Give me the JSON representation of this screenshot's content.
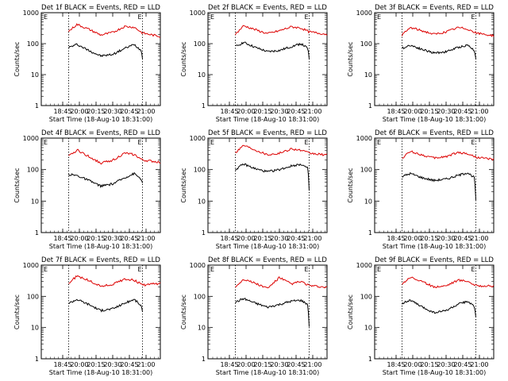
{
  "chart_data": [
    {
      "type": "line",
      "title": "Det 1f BLACK = Events, RED = LLD",
      "xlabel": "Start Time (18-Aug-10 18:31:00)",
      "ylabel": "Counts/sec",
      "yscale": "log",
      "ylim": [
        1,
        1000
      ],
      "yticks": [
        "1",
        "10",
        "100",
        "1000"
      ],
      "xticks": [
        "18:45",
        "20:00",
        "20:15",
        "20:30",
        "20:45",
        "21:00"
      ],
      "annotations": [
        "E",
        "E"
      ],
      "dotted_lines": [
        0.23,
        0.85
      ],
      "series": [
        {
          "color": "#000000",
          "x": [
            0.23,
            0.3,
            0.4,
            0.5,
            0.6,
            0.7,
            0.78,
            0.84,
            0.85
          ],
          "values": [
            75,
            95,
            60,
            40,
            45,
            70,
            95,
            60,
            35
          ]
        },
        {
          "color": "#dd0000",
          "x": [
            0.23,
            0.3,
            0.4,
            0.5,
            0.6,
            0.7,
            0.78,
            0.85,
            1.0
          ],
          "values": [
            250,
            420,
            290,
            190,
            230,
            360,
            340,
            220,
            170
          ]
        }
      ]
    },
    {
      "type": "line",
      "title": "Det 2f BLACK = Events, RED = LLD",
      "xlabel": "Start Time (18-Aug-10 18:31:00)",
      "ylabel": "Counts/sec",
      "yscale": "log",
      "ylim": [
        1,
        1000
      ],
      "yticks": [
        "1",
        "10",
        "100",
        "1000"
      ],
      "xticks": [
        "18:45",
        "20:00",
        "20:15",
        "20:30",
        "20:45",
        "21:00"
      ],
      "annotations": [
        "E",
        "E"
      ],
      "dotted_lines": [
        0.23,
        0.85
      ],
      "series": [
        {
          "color": "#000000",
          "x": [
            0.23,
            0.3,
            0.4,
            0.5,
            0.6,
            0.7,
            0.78,
            0.84,
            0.85
          ],
          "values": [
            80,
            110,
            75,
            55,
            60,
            80,
            100,
            70,
            30
          ]
        },
        {
          "color": "#dd0000",
          "x": [
            0.23,
            0.3,
            0.4,
            0.5,
            0.6,
            0.7,
            0.78,
            0.85,
            1.0
          ],
          "values": [
            200,
            380,
            280,
            210,
            260,
            350,
            320,
            240,
            200
          ]
        }
      ]
    },
    {
      "type": "line",
      "title": "Det 3f BLACK = Events, RED = LLD",
      "xlabel": "Start Time (18-Aug-10 18:31:00)",
      "ylabel": "Counts/sec",
      "yscale": "log",
      "ylim": [
        1,
        1000
      ],
      "yticks": [
        "1",
        "10",
        "100",
        "1000"
      ],
      "xticks": [
        "18:45",
        "20:00",
        "20:15",
        "20:30",
        "20:45",
        "21:00"
      ],
      "annotations": [
        "E",
        "E"
      ],
      "dotted_lines": [
        0.23,
        0.85
      ],
      "series": [
        {
          "color": "#000000",
          "x": [
            0.23,
            0.3,
            0.4,
            0.5,
            0.6,
            0.7,
            0.78,
            0.84,
            0.85
          ],
          "values": [
            70,
            90,
            65,
            50,
            55,
            75,
            90,
            60,
            30
          ]
        },
        {
          "color": "#dd0000",
          "x": [
            0.23,
            0.3,
            0.4,
            0.5,
            0.6,
            0.7,
            0.78,
            0.85,
            1.0
          ],
          "values": [
            190,
            330,
            260,
            200,
            240,
            330,
            300,
            220,
            180
          ]
        }
      ]
    },
    {
      "type": "line",
      "title": "Det 4f BLACK = Events, RED = LLD",
      "xlabel": "Start Time (18-Aug-10 18:31:00)",
      "ylabel": "Counts/sec",
      "yscale": "log",
      "ylim": [
        1,
        1000
      ],
      "yticks": [
        "1",
        "10",
        "100",
        "1000"
      ],
      "xticks": [
        "18:45",
        "20:00",
        "20:15",
        "20:30",
        "20:45",
        "21:00"
      ],
      "annotations": [
        "E",
        "E"
      ],
      "dotted_lines": [
        0.23,
        0.85
      ],
      "series": [
        {
          "color": "#000000",
          "x": [
            0.23,
            0.3,
            0.4,
            0.5,
            0.6,
            0.7,
            0.78,
            0.84,
            0.85
          ],
          "values": [
            70,
            65,
            45,
            30,
            35,
            55,
            75,
            50,
            35
          ]
        },
        {
          "color": "#dd0000",
          "x": [
            0.23,
            0.3,
            0.4,
            0.5,
            0.6,
            0.7,
            0.78,
            0.85,
            1.0
          ],
          "values": [
            260,
            420,
            260,
            160,
            200,
            330,
            300,
            200,
            170
          ]
        }
      ]
    },
    {
      "type": "line",
      "title": "Det 5f BLACK = Events, RED = LLD",
      "xlabel": "Start Time (18-Aug-10 18:31:00)",
      "ylabel": "Counts/sec",
      "yscale": "log",
      "ylim": [
        1,
        1000
      ],
      "yticks": [
        "1",
        "10",
        "100",
        "1000"
      ],
      "xticks": [
        "18:45",
        "20:00",
        "20:15",
        "20:30",
        "20:45",
        "21:00"
      ],
      "annotations": [
        "E",
        "E"
      ],
      "dotted_lines": [
        0.23,
        0.85
      ],
      "series": [
        {
          "color": "#000000",
          "x": [
            0.23,
            0.3,
            0.4,
            0.5,
            0.6,
            0.7,
            0.78,
            0.84,
            0.85
          ],
          "values": [
            100,
            150,
            105,
            85,
            100,
            130,
            150,
            110,
            20
          ]
        },
        {
          "color": "#dd0000",
          "x": [
            0.23,
            0.3,
            0.4,
            0.5,
            0.6,
            0.7,
            0.78,
            0.85,
            1.0
          ],
          "values": [
            350,
            600,
            420,
            300,
            330,
            460,
            410,
            330,
            290
          ]
        }
      ]
    },
    {
      "type": "line",
      "title": "Det 6f BLACK = Events, RED = LLD",
      "xlabel": "Start Time (18-Aug-10 18:31:00)",
      "ylabel": "Counts/sec",
      "yscale": "log",
      "ylim": [
        1,
        1000
      ],
      "yticks": [
        "1",
        "10",
        "100",
        "1000"
      ],
      "xticks": [
        "18:45",
        "20:00",
        "20:15",
        "20:30",
        "20:45",
        "21:00"
      ],
      "annotations": [
        "E",
        "E"
      ],
      "dotted_lines": [
        0.23,
        0.85
      ],
      "series": [
        {
          "color": "#000000",
          "x": [
            0.23,
            0.3,
            0.4,
            0.5,
            0.6,
            0.7,
            0.78,
            0.84,
            0.85
          ],
          "values": [
            60,
            75,
            55,
            45,
            50,
            65,
            80,
            55,
            10
          ]
        },
        {
          "color": "#dd0000",
          "x": [
            0.23,
            0.3,
            0.4,
            0.5,
            0.6,
            0.7,
            0.78,
            0.85,
            1.0
          ],
          "values": [
            230,
            380,
            290,
            230,
            260,
            350,
            320,
            250,
            210
          ]
        }
      ]
    },
    {
      "type": "line",
      "title": "Det 7f BLACK = Events, RED = LLD",
      "xlabel": "Start Time (18-Aug-10 18:31:00)",
      "ylabel": "Counts/sec",
      "yscale": "log",
      "ylim": [
        1,
        1000
      ],
      "yticks": [
        "1",
        "10",
        "100",
        "1000"
      ],
      "xticks": [
        "18:45",
        "20:00",
        "20:15",
        "20:30",
        "20:45",
        "21:00"
      ],
      "annotations": [
        "E",
        "E"
      ],
      "dotted_lines": [
        0.23,
        0.85
      ],
      "series": [
        {
          "color": "#000000",
          "x": [
            0.23,
            0.3,
            0.4,
            0.5,
            0.6,
            0.7,
            0.78,
            0.84,
            0.85
          ],
          "values": [
            60,
            80,
            55,
            35,
            40,
            60,
            80,
            50,
            30
          ]
        },
        {
          "color": "#dd0000",
          "x": [
            0.23,
            0.3,
            0.4,
            0.5,
            0.6,
            0.7,
            0.78,
            0.85,
            1.0
          ],
          "values": [
            260,
            450,
            320,
            210,
            240,
            360,
            330,
            230,
            260
          ]
        }
      ]
    },
    {
      "type": "line",
      "title": "Det 8f BLACK = Events, RED = LLD",
      "xlabel": "Start Time (18-Aug-10 18:31:00)",
      "ylabel": "Counts/sec",
      "yscale": "log",
      "ylim": [
        1,
        1000
      ],
      "yticks": [
        "1",
        "10",
        "100",
        "1000"
      ],
      "xticks": [
        "18:45",
        "20:00",
        "20:15",
        "20:30",
        "20:45",
        "21:00"
      ],
      "annotations": [
        "E",
        "E"
      ],
      "dotted_lines": [
        0.23,
        0.85
      ],
      "series": [
        {
          "color": "#000000",
          "x": [
            0.23,
            0.3,
            0.4,
            0.5,
            0.6,
            0.7,
            0.78,
            0.84,
            0.85
          ],
          "values": [
            65,
            85,
            60,
            45,
            55,
            70,
            75,
            55,
            10
          ]
        },
        {
          "color": "#dd0000",
          "x": [
            0.23,
            0.3,
            0.4,
            0.5,
            0.6,
            0.7,
            0.78,
            0.85,
            1.0
          ],
          "values": [
            200,
            360,
            260,
            180,
            400,
            250,
            300,
            220,
            190
          ]
        }
      ]
    },
    {
      "type": "line",
      "title": "Det 9f BLACK = Events, RED = LLD",
      "xlabel": "Start Time (18-Aug-10 18:31:00)",
      "ylabel": "Counts/sec",
      "yscale": "log",
      "ylim": [
        1,
        1000
      ],
      "yticks": [
        "1",
        "10",
        "100",
        "1000"
      ],
      "xticks": [
        "18:45",
        "20:00",
        "20:15",
        "20:30",
        "20:45",
        "21:00"
      ],
      "annotations": [
        "E",
        "E"
      ],
      "dotted_lines": [
        0.23,
        0.85
      ],
      "series": [
        {
          "color": "#000000",
          "x": [
            0.23,
            0.3,
            0.4,
            0.5,
            0.6,
            0.7,
            0.78,
            0.84,
            0.85
          ],
          "values": [
            60,
            75,
            45,
            30,
            35,
            55,
            70,
            45,
            20
          ]
        },
        {
          "color": "#dd0000",
          "x": [
            0.23,
            0.3,
            0.4,
            0.5,
            0.6,
            0.7,
            0.78,
            0.85,
            1.0
          ],
          "values": [
            250,
            420,
            290,
            200,
            220,
            330,
            310,
            220,
            210
          ]
        }
      ]
    }
  ]
}
